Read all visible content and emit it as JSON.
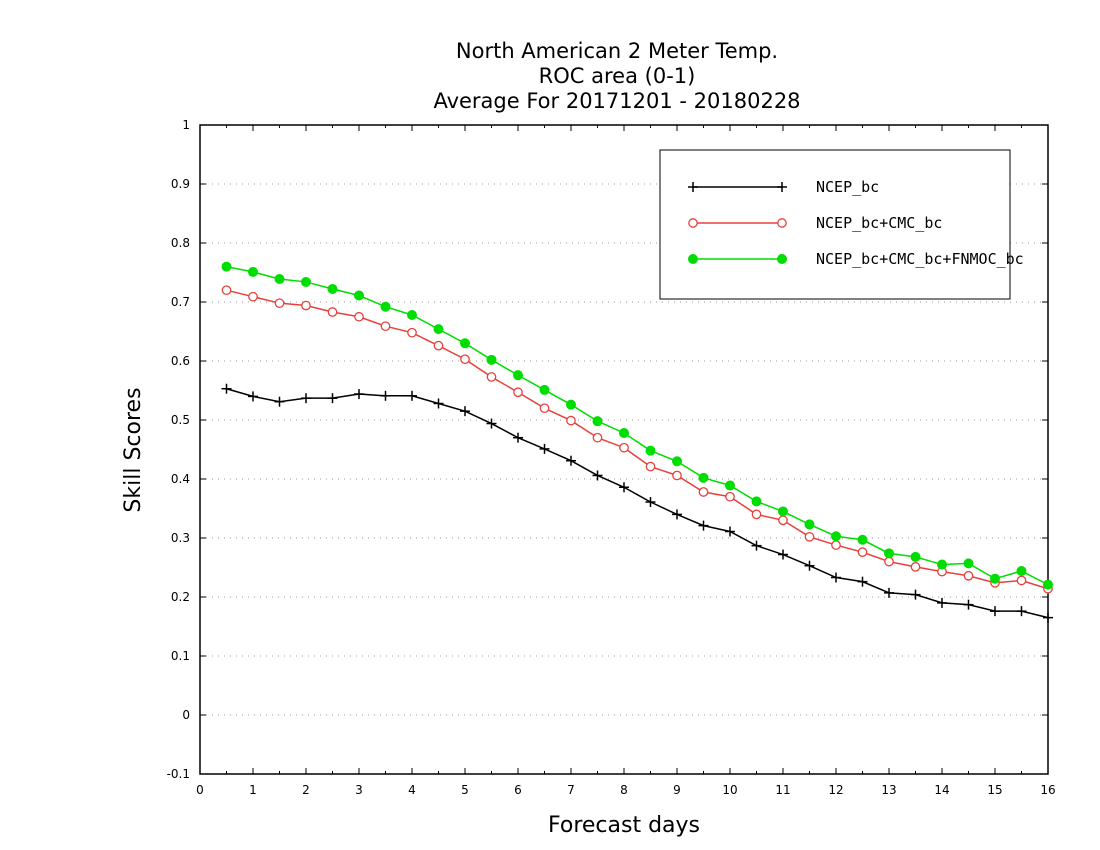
{
  "chart_data": {
    "type": "line",
    "title": [
      "North American 2 Meter Temp.",
      "ROC area (0-1)",
      "Average For 20171201 - 20180228"
    ],
    "xlabel": "Forecast days",
    "ylabel": "Skill Scores",
    "xlim": [
      0,
      16
    ],
    "ylim": [
      -0.1,
      1
    ],
    "xticks": [
      0,
      1,
      2,
      3,
      4,
      5,
      6,
      7,
      8,
      9,
      10,
      11,
      12,
      13,
      14,
      15,
      16
    ],
    "yticks": [
      -0.1,
      0,
      0.1,
      0.2,
      0.3,
      0.4,
      0.5,
      0.6,
      0.7,
      0.8,
      0.9,
      1
    ],
    "ytick_labels": [
      "-0.1",
      "0",
      "0.1",
      "0.2",
      "0.3",
      "0.4",
      "0.5",
      "0.6",
      "0.7",
      "0.8",
      "0.9",
      "1"
    ],
    "grid": "horizontal dotted",
    "legend_position": "top-right",
    "x": [
      0.5,
      1.0,
      1.5,
      2.0,
      2.5,
      3.0,
      3.5,
      4.0,
      4.5,
      5.0,
      5.5,
      6.0,
      6.5,
      7.0,
      7.5,
      8.0,
      8.5,
      9.0,
      9.5,
      10.0,
      10.5,
      11.0,
      11.5,
      12.0,
      12.5,
      13.0,
      13.5,
      14.0,
      14.5,
      15.0,
      15.5,
      16.0
    ],
    "series": [
      {
        "name": "NCEP_bc",
        "color": "#000000",
        "marker": "plus",
        "values": [
          0.553,
          0.54,
          0.531,
          0.537,
          0.537,
          0.544,
          0.541,
          0.541,
          0.528,
          0.515,
          0.494,
          0.47,
          0.451,
          0.431,
          0.406,
          0.386,
          0.361,
          0.34,
          0.321,
          0.311,
          0.287,
          0.272,
          0.253,
          0.233,
          0.226,
          0.207,
          0.204,
          0.19,
          0.187,
          0.176,
          0.176,
          0.165
        ]
      },
      {
        "name": "NCEP_bc+CMC_bc",
        "color": "#e8403c",
        "marker": "open-circle",
        "values": [
          0.72,
          0.709,
          0.698,
          0.694,
          0.683,
          0.675,
          0.659,
          0.648,
          0.626,
          0.603,
          0.573,
          0.547,
          0.52,
          0.499,
          0.47,
          0.453,
          0.421,
          0.406,
          0.378,
          0.37,
          0.34,
          0.33,
          0.302,
          0.288,
          0.276,
          0.26,
          0.251,
          0.243,
          0.236,
          0.224,
          0.228,
          0.214
        ]
      },
      {
        "name": "NCEP_bc+CMC_bc+FNMOC_bc",
        "color": "#00dd00",
        "marker": "filled-circle",
        "values": [
          0.76,
          0.751,
          0.739,
          0.734,
          0.722,
          0.711,
          0.692,
          0.678,
          0.654,
          0.63,
          0.602,
          0.576,
          0.551,
          0.526,
          0.498,
          0.478,
          0.448,
          0.43,
          0.402,
          0.389,
          0.362,
          0.345,
          0.323,
          0.303,
          0.297,
          0.274,
          0.268,
          0.255,
          0.257,
          0.231,
          0.244,
          0.221
        ]
      }
    ]
  }
}
